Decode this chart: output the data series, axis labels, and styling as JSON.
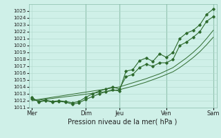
{
  "title": "Pression niveau de la mer( hPa )",
  "bg_color": "#cff0e8",
  "grid_color": "#b0d8cc",
  "line_color": "#2d6a2d",
  "vline_color": "#5a9a7a",
  "ylim": [
    1011,
    1026
  ],
  "yticks": [
    1011,
    1012,
    1013,
    1014,
    1015,
    1016,
    1017,
    1018,
    1019,
    1020,
    1021,
    1022,
    1023,
    1024,
    1025
  ],
  "xtick_labels": [
    "Mer",
    "",
    "Dim",
    "Jeu",
    "",
    "Ven",
    "",
    "Sam"
  ],
  "xtick_positions": [
    0,
    5,
    8,
    13,
    16,
    20,
    23,
    27
  ],
  "vline_positions": [
    8,
    13,
    20,
    27
  ],
  "total_points": 28,
  "series1": [
    1012.5,
    1011.8,
    1012.0,
    1011.8,
    1011.9,
    1011.8,
    1011.5,
    1011.7,
    1012.2,
    1012.6,
    1013.0,
    1013.3,
    1013.6,
    1013.4,
    1016.3,
    1016.5,
    1017.8,
    1018.2,
    1017.7,
    1018.8,
    1018.3,
    1019.0,
    1021.0,
    1021.8,
    1022.2,
    1023.0,
    1024.5,
    1025.3
  ],
  "series2": [
    1012.3,
    1011.9,
    1012.1,
    1011.9,
    1012.0,
    1011.9,
    1011.7,
    1011.9,
    1012.5,
    1013.0,
    1013.4,
    1013.7,
    1014.0,
    1013.7,
    1015.5,
    1015.8,
    1016.8,
    1017.3,
    1017.0,
    1017.5,
    1017.5,
    1018.0,
    1020.0,
    1020.5,
    1021.2,
    1022.0,
    1023.5,
    1024.2
  ],
  "series3_linear": [
    1012.1,
    1012.2,
    1012.35,
    1012.5,
    1012.65,
    1012.8,
    1012.95,
    1013.1,
    1013.25,
    1013.4,
    1013.55,
    1013.7,
    1013.85,
    1014.0,
    1014.3,
    1014.6,
    1014.9,
    1015.2,
    1015.55,
    1015.9,
    1016.35,
    1016.8,
    1017.5,
    1018.2,
    1019.0,
    1019.9,
    1021.0,
    1022.2
  ],
  "series4_linear": [
    1012.0,
    1012.1,
    1012.22,
    1012.34,
    1012.46,
    1012.58,
    1012.7,
    1012.82,
    1012.95,
    1013.08,
    1013.2,
    1013.33,
    1013.46,
    1013.6,
    1013.85,
    1014.1,
    1014.4,
    1014.7,
    1015.05,
    1015.4,
    1015.8,
    1016.2,
    1016.8,
    1017.5,
    1018.25,
    1019.1,
    1020.1,
    1021.2
  ]
}
